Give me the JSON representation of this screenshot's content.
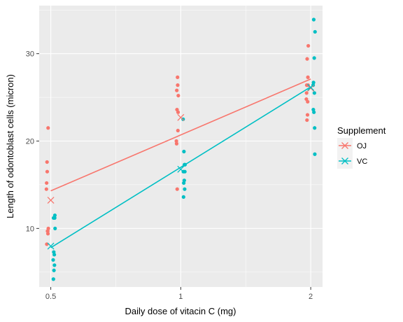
{
  "chart_data": {
    "type": "scatter",
    "xlabel": "Daily dose of vitacin C (mg)",
    "ylabel": "Length of odontoblast cells (micron)",
    "x_scale": "log",
    "xlim": [
      0.47,
      2.13
    ],
    "ylim": [
      3.3,
      35.5
    ],
    "x_ticks": [
      0.5,
      1,
      2
    ],
    "x_tick_labels": [
      "0.5",
      "1",
      "2"
    ],
    "y_ticks": [
      10,
      20,
      30
    ],
    "y_tick_labels": [
      "10",
      "20",
      "30"
    ],
    "grid": true,
    "legend": {
      "title": "Supplement",
      "position": "right",
      "entries": [
        "OJ",
        "VC"
      ]
    },
    "series": [
      {
        "name": "OJ",
        "color": "#F8766D",
        "points": [
          {
            "x": 0.5,
            "y": 15.2
          },
          {
            "x": 0.5,
            "y": 21.5
          },
          {
            "x": 0.5,
            "y": 17.6
          },
          {
            "x": 0.5,
            "y": 9.7
          },
          {
            "x": 0.5,
            "y": 14.5
          },
          {
            "x": 0.5,
            "y": 10.0
          },
          {
            "x": 0.5,
            "y": 8.2
          },
          {
            "x": 0.5,
            "y": 9.4
          },
          {
            "x": 0.5,
            "y": 16.5
          },
          {
            "x": 0.5,
            "y": 9.7
          },
          {
            "x": 1,
            "y": 19.7
          },
          {
            "x": 1,
            "y": 23.3
          },
          {
            "x": 1,
            "y": 23.6
          },
          {
            "x": 1,
            "y": 26.4
          },
          {
            "x": 1,
            "y": 20.0
          },
          {
            "x": 1,
            "y": 25.2
          },
          {
            "x": 1,
            "y": 25.8
          },
          {
            "x": 1,
            "y": 21.2
          },
          {
            "x": 1,
            "y": 14.5
          },
          {
            "x": 1,
            "y": 27.3
          },
          {
            "x": 2,
            "y": 25.5
          },
          {
            "x": 2,
            "y": 26.4
          },
          {
            "x": 2,
            "y": 22.4
          },
          {
            "x": 2,
            "y": 24.5
          },
          {
            "x": 2,
            "y": 24.8
          },
          {
            "x": 2,
            "y": 30.9
          },
          {
            "x": 2,
            "y": 26.4
          },
          {
            "x": 2,
            "y": 27.3
          },
          {
            "x": 2,
            "y": 29.4
          },
          {
            "x": 2,
            "y": 23.0
          }
        ],
        "means": [
          {
            "x": 0.5,
            "y": 13.23
          },
          {
            "x": 1,
            "y": 22.7
          },
          {
            "x": 2,
            "y": 26.06
          }
        ],
        "fit_line": [
          {
            "x": 0.5,
            "y": 14.3
          },
          {
            "x": 2,
            "y": 27.1
          }
        ]
      },
      {
        "name": "VC",
        "color": "#00BFC4",
        "points": [
          {
            "x": 0.5,
            "y": 4.2
          },
          {
            "x": 0.5,
            "y": 11.5
          },
          {
            "x": 0.5,
            "y": 7.3
          },
          {
            "x": 0.5,
            "y": 5.8
          },
          {
            "x": 0.5,
            "y": 6.4
          },
          {
            "x": 0.5,
            "y": 10.0
          },
          {
            "x": 0.5,
            "y": 11.2
          },
          {
            "x": 0.5,
            "y": 11.2
          },
          {
            "x": 0.5,
            "y": 5.2
          },
          {
            "x": 0.5,
            "y": 7.0
          },
          {
            "x": 1,
            "y": 16.5
          },
          {
            "x": 1,
            "y": 16.5
          },
          {
            "x": 1,
            "y": 15.2
          },
          {
            "x": 1,
            "y": 17.3
          },
          {
            "x": 1,
            "y": 22.5
          },
          {
            "x": 1,
            "y": 17.3
          },
          {
            "x": 1,
            "y": 13.6
          },
          {
            "x": 1,
            "y": 14.5
          },
          {
            "x": 1,
            "y": 18.8
          },
          {
            "x": 1,
            "y": 15.5
          },
          {
            "x": 2,
            "y": 23.6
          },
          {
            "x": 2,
            "y": 18.5
          },
          {
            "x": 2,
            "y": 33.9
          },
          {
            "x": 2,
            "y": 25.5
          },
          {
            "x": 2,
            "y": 26.4
          },
          {
            "x": 2,
            "y": 32.5
          },
          {
            "x": 2,
            "y": 26.7
          },
          {
            "x": 2,
            "y": 21.5
          },
          {
            "x": 2,
            "y": 23.3
          },
          {
            "x": 2,
            "y": 29.5
          }
        ],
        "means": [
          {
            "x": 0.5,
            "y": 7.98
          },
          {
            "x": 1,
            "y": 16.77
          },
          {
            "x": 2,
            "y": 26.14
          }
        ],
        "fit_line": [
          {
            "x": 0.5,
            "y": 7.8
          },
          {
            "x": 2,
            "y": 26.2
          }
        ]
      }
    ]
  }
}
